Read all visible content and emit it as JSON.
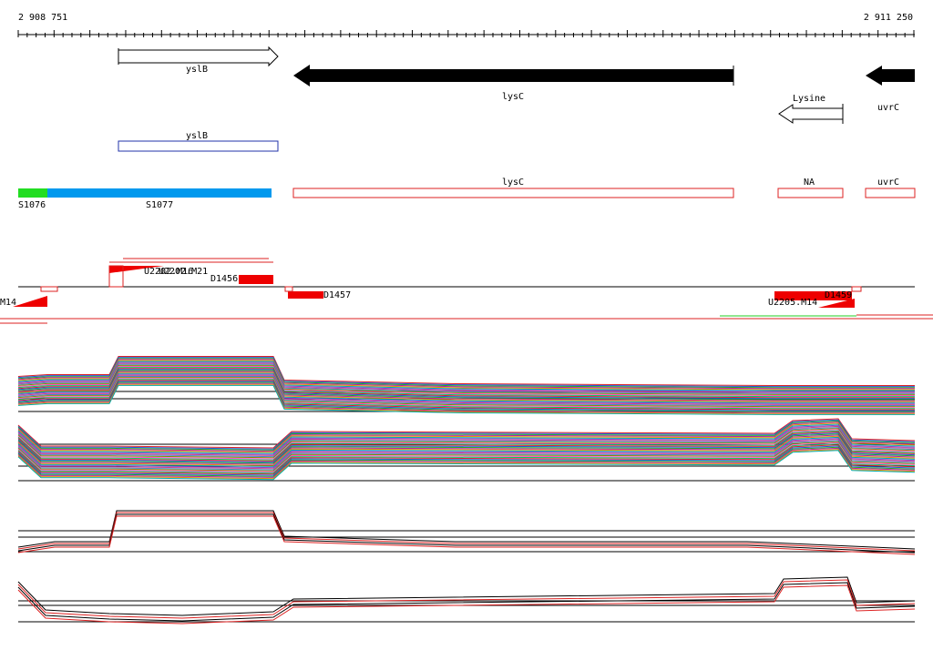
{
  "ruler": {
    "start": "2 908 751",
    "end": "2 911 250"
  },
  "genes": [
    {
      "label": "yslB"
    },
    {
      "label": "lysC"
    },
    {
      "label": "Lysine"
    },
    {
      "label": "uvrC"
    }
  ],
  "annotation": [
    {
      "label": "yslB"
    }
  ],
  "segments": [
    {
      "label": "S1076"
    },
    {
      "label": "S1077"
    }
  ],
  "features": [
    {
      "label": "lysC"
    },
    {
      "label": "NA"
    },
    {
      "label": "uvrC"
    }
  ],
  "transcripts": [
    {
      "label": "M14"
    },
    {
      "label": "U2202.M16"
    },
    {
      "label": "U2202.M21"
    },
    {
      "label": "D1456"
    },
    {
      "label": "D1457"
    },
    {
      "label": "U2205.M14"
    },
    {
      "label": "D1459"
    }
  ]
}
